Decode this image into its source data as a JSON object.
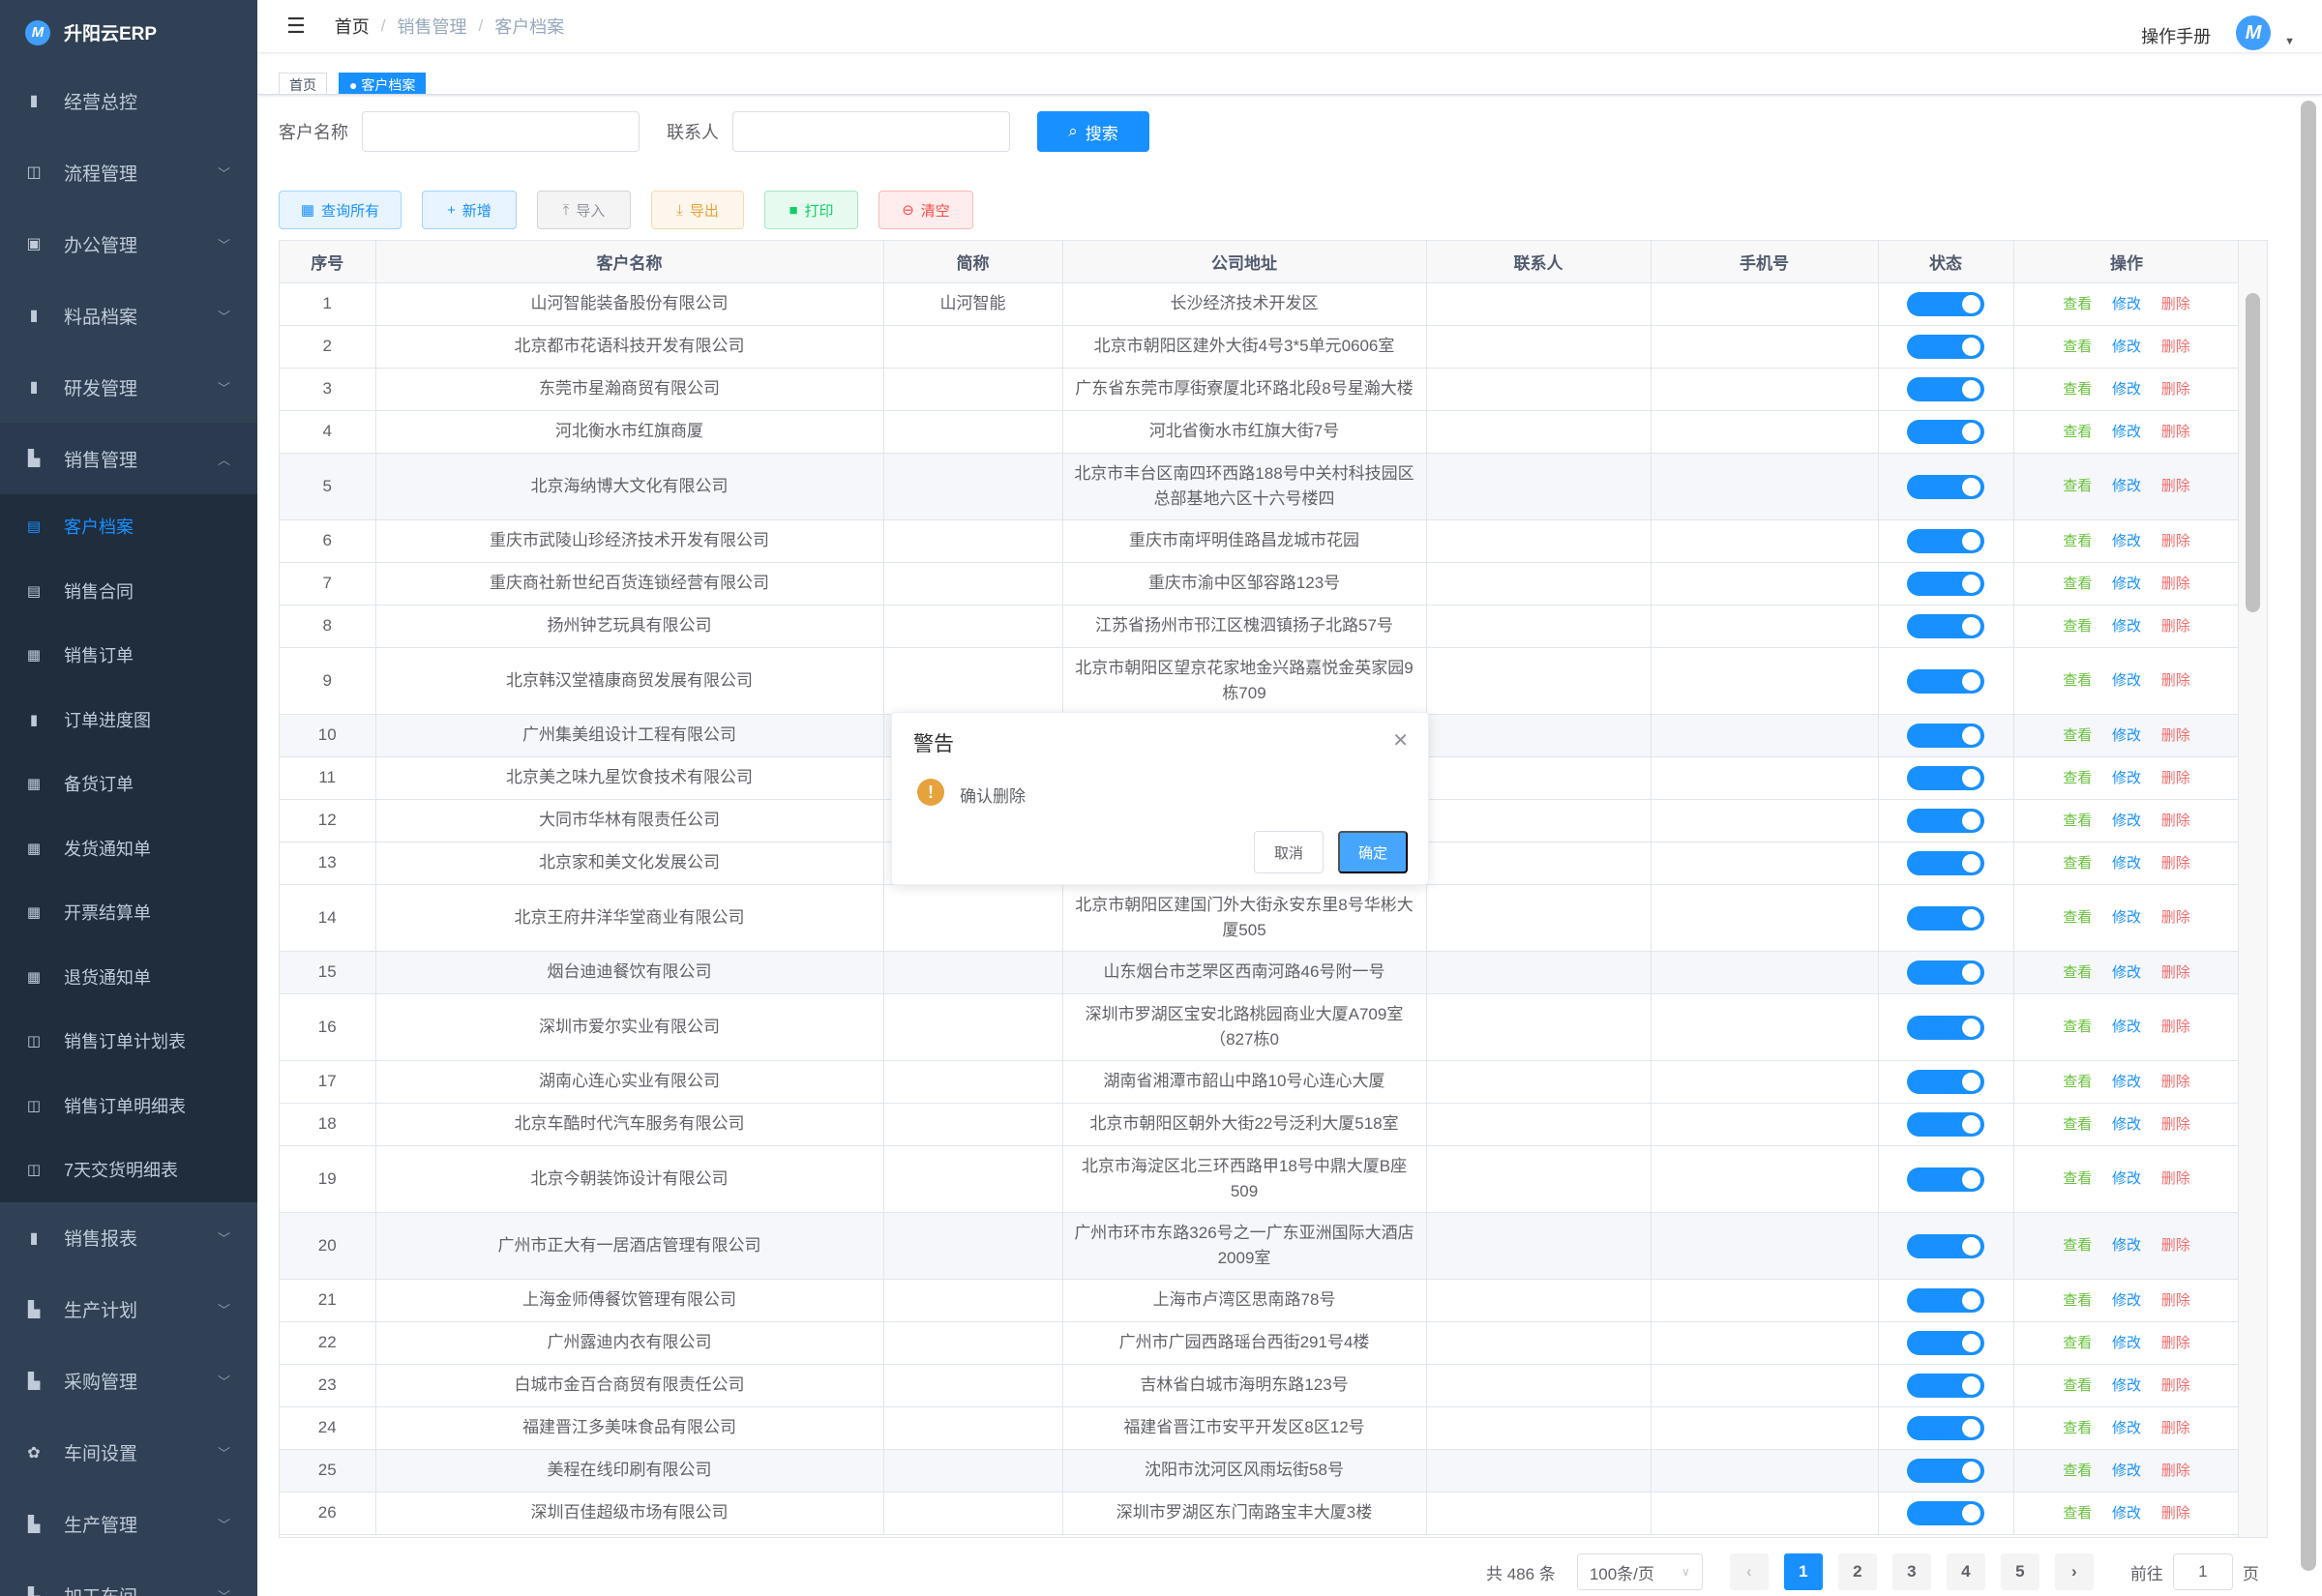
{
  "app": {
    "title": "升阳云ERP",
    "logo_letter": "M"
  },
  "sidebar": {
    "top": [
      {
        "label": "经营总控",
        "icon": "bar-chart-icon",
        "expandable": false
      },
      {
        "label": "流程管理",
        "icon": "flow-icon",
        "expandable": true
      },
      {
        "label": "办公管理",
        "icon": "office-icon",
        "expandable": true
      },
      {
        "label": "料品档案",
        "icon": "book-icon",
        "expandable": true
      },
      {
        "label": "研发管理",
        "icon": "research-icon",
        "expandable": true
      },
      {
        "label": "销售管理",
        "icon": "documents-icon",
        "expandable": true,
        "open": true
      }
    ],
    "sub": [
      {
        "label": "客户档案",
        "icon": "edit-doc-icon",
        "active": true
      },
      {
        "label": "销售合同",
        "icon": "edit-doc-icon"
      },
      {
        "label": "销售订单",
        "icon": "table-icon"
      },
      {
        "label": "订单进度图",
        "icon": "bar-chart-icon"
      },
      {
        "label": "备货订单",
        "icon": "table-icon"
      },
      {
        "label": "发货通知单",
        "icon": "table-icon"
      },
      {
        "label": "开票结算单",
        "icon": "table-icon"
      },
      {
        "label": "退货通知单",
        "icon": "table-icon"
      },
      {
        "label": "销售订单计划表",
        "icon": "open-book-icon"
      },
      {
        "label": "销售订单明细表",
        "icon": "open-book-icon"
      },
      {
        "label": "7天交货明细表",
        "icon": "open-book-icon"
      }
    ],
    "bottom": [
      {
        "label": "销售报表",
        "icon": "bar-chart-icon"
      },
      {
        "label": "生产计划",
        "icon": "documents-icon"
      },
      {
        "label": "采购管理",
        "icon": "documents-icon"
      },
      {
        "label": "车间设置",
        "icon": "gear-icon"
      },
      {
        "label": "生产管理",
        "icon": "documents-icon"
      },
      {
        "label": "加工车间",
        "icon": "documents-icon"
      }
    ]
  },
  "navbar": {
    "breadcrumb": [
      "首页",
      "销售管理",
      "客户档案"
    ],
    "manual": "操作手册"
  },
  "tags": [
    {
      "label": "首页",
      "active": false
    },
    {
      "label": "● 客户档案",
      "active": true
    }
  ],
  "search": {
    "name_label": "客户名称",
    "name_value": "",
    "contact_label": "联系人",
    "contact_value": "",
    "button": "搜索"
  },
  "toolbar": [
    {
      "label": "查询所有",
      "icon": "grid-icon",
      "glyph": "▦",
      "color": "#1890ff",
      "bg": "#e8f4ff",
      "border": "#a3d3ff"
    },
    {
      "label": "新增",
      "icon": "plus-icon",
      "glyph": "+",
      "color": "#1890ff",
      "bg": "#e8f4ff",
      "border": "#a3d3ff"
    },
    {
      "label": "导入",
      "icon": "upload-icon",
      "glyph": "⤒",
      "color": "#909399",
      "bg": "#f4f4f5",
      "border": "#d3d4d6"
    },
    {
      "label": "导出",
      "icon": "download-icon",
      "glyph": "⤓",
      "color": "#e6a23c",
      "bg": "#fdf6ec",
      "border": "#f5dab1"
    },
    {
      "label": "打印",
      "icon": "print-icon",
      "glyph": "■",
      "color": "#13ce66",
      "bg": "#e7faf0",
      "border": "#a1ebc2"
    },
    {
      "label": "清空",
      "icon": "clear-icon",
      "glyph": "⊖",
      "color": "#ff4949",
      "bg": "#ffeded",
      "border": "#ffb6b6"
    }
  ],
  "table": {
    "columns": [
      "序号",
      "客户名称",
      "简称",
      "公司地址",
      "联系人",
      "手机号",
      "状态",
      "操作"
    ],
    "actions": {
      "view": "查看",
      "edit": "修改",
      "delete": "删除"
    },
    "rows": [
      {
        "no": "1",
        "name": "山河智能装备股份有限公司",
        "short": "山河智能",
        "address": "长沙经济技术开发区",
        "contact": "",
        "phone": "",
        "status": true
      },
      {
        "no": "2",
        "name": "北京都市花语科技开发有限公司",
        "short": "",
        "address": "北京市朝阳区建外大街4号3*5单元0606室",
        "contact": "",
        "phone": "",
        "status": true
      },
      {
        "no": "3",
        "name": "东莞市星瀚商贸有限公司",
        "short": "",
        "address": "广东省东莞市厚街寮厦北环路北段8号星瀚大楼",
        "contact": "",
        "phone": "",
        "status": true
      },
      {
        "no": "4",
        "name": "河北衡水市红旗商厦",
        "short": "",
        "address": "河北省衡水市红旗大街7号",
        "contact": "",
        "phone": "",
        "status": true
      },
      {
        "no": "5",
        "name": "北京海纳博大文化有限公司",
        "short": "",
        "address": "北京市丰台区南四环西路188号中关村科技园区总部基地六区十六号楼四",
        "contact": "",
        "phone": "",
        "status": true,
        "highlighted": true
      },
      {
        "no": "6",
        "name": "重庆市武陵山珍经济技术开发有限公司",
        "short": "",
        "address": "重庆市南坪明佳路昌龙城市花园",
        "contact": "",
        "phone": "",
        "status": true
      },
      {
        "no": "7",
        "name": "重庆商社新世纪百货连锁经营有限公司",
        "short": "",
        "address": "重庆市渝中区邹容路123号",
        "contact": "",
        "phone": "",
        "status": true
      },
      {
        "no": "8",
        "name": "扬州钟艺玩具有限公司",
        "short": "",
        "address": "江苏省扬州市邗江区槐泗镇扬子北路57号",
        "contact": "",
        "phone": "",
        "status": true
      },
      {
        "no": "9",
        "name": "北京韩汉堂禧康商贸发展有限公司",
        "short": "",
        "address": "北京市朝阳区望京花家地金兴路嘉悦金英家园9栋709",
        "contact": "",
        "phone": "",
        "status": true
      },
      {
        "no": "10",
        "name": "广州集美组设计工程有限公司",
        "short": "",
        "address": "",
        "contact": "",
        "phone": "",
        "status": true,
        "highlighted": true
      },
      {
        "no": "11",
        "name": "北京美之味九星饮食技术有限公司",
        "short": "",
        "address": "",
        "contact": "",
        "phone": "",
        "status": true
      },
      {
        "no": "12",
        "name": "大同市华林有限责任公司",
        "short": "",
        "address": "",
        "contact": "",
        "phone": "",
        "status": true
      },
      {
        "no": "13",
        "name": "北京家和美文化发展公司",
        "short": "",
        "address": "",
        "contact": "",
        "phone": "",
        "status": true
      },
      {
        "no": "14",
        "name": "北京王府井洋华堂商业有限公司",
        "short": "",
        "address": "北京市朝阳区建国门外大街永安东里8号华彬大厦505",
        "contact": "",
        "phone": "",
        "status": true
      },
      {
        "no": "15",
        "name": "烟台迪迪餐饮有限公司",
        "short": "",
        "address": "山东烟台市芝罘区西南河路46号附一号",
        "contact": "",
        "phone": "",
        "status": true,
        "highlighted": true
      },
      {
        "no": "16",
        "name": "深圳市爱尔实业有限公司",
        "short": "",
        "address": "深圳市罗湖区宝安北路桃园商业大厦A709室（827栋0",
        "contact": "",
        "phone": "",
        "status": true
      },
      {
        "no": "17",
        "name": "湖南心连心实业有限公司",
        "short": "",
        "address": "湖南省湘潭市韶山中路10号心连心大厦",
        "contact": "",
        "phone": "",
        "status": true
      },
      {
        "no": "18",
        "name": "北京车酷时代汽车服务有限公司",
        "short": "",
        "address": "北京市朝阳区朝外大街22号泛利大厦518室",
        "contact": "",
        "phone": "",
        "status": true
      },
      {
        "no": "19",
        "name": "北京今朝装饰设计有限公司",
        "short": "",
        "address": "北京市海淀区北三环西路甲18号中鼎大厦B座509",
        "contact": "",
        "phone": "",
        "status": true
      },
      {
        "no": "20",
        "name": "广州市正大有一居酒店管理有限公司",
        "short": "",
        "address": "广州市环市东路326号之一广东亚洲国际大酒店2009室",
        "contact": "",
        "phone": "",
        "status": true,
        "highlighted": true
      },
      {
        "no": "21",
        "name": "上海金师傅餐饮管理有限公司",
        "short": "",
        "address": "上海市卢湾区思南路78号",
        "contact": "",
        "phone": "",
        "status": true
      },
      {
        "no": "22",
        "name": "广州露迪内衣有限公司",
        "short": "",
        "address": "广州市广园西路瑶台西街291号4楼",
        "contact": "",
        "phone": "",
        "status": true
      },
      {
        "no": "23",
        "name": "白城市金百合商贸有限责任公司",
        "short": "",
        "address": "吉林省白城市海明东路123号",
        "contact": "",
        "phone": "",
        "status": true
      },
      {
        "no": "24",
        "name": "福建晋江多美味食品有限公司",
        "short": "",
        "address": "福建省晋江市安平开发区8区12号",
        "contact": "",
        "phone": "",
        "status": true
      },
      {
        "no": "25",
        "name": "美程在线印刷有限公司",
        "short": "",
        "address": "沈阳市沈河区风雨坛街58号",
        "contact": "",
        "phone": "",
        "status": true,
        "highlighted": true
      },
      {
        "no": "26",
        "name": "深圳百佳超级市场有限公司",
        "short": "",
        "address": "深圳市罗湖区东门南路宝丰大厦3楼",
        "contact": "",
        "phone": "",
        "status": true
      }
    ]
  },
  "pagination": {
    "total": "共 486 条",
    "page_size": "100条/页",
    "pages": [
      "1",
      "2",
      "3",
      "4",
      "5"
    ],
    "current": "1",
    "goto_label": "前往",
    "goto_value": "1",
    "page_suffix": "页"
  },
  "dialog": {
    "title": "警告",
    "message": "确认删除",
    "cancel": "取消",
    "confirm": "确定"
  },
  "colors": {
    "primary": "#1890ff",
    "sidebar": "#304156",
    "submenu": "#1f2d3d",
    "warning": "#e6a23c",
    "danger": "#f56c6c",
    "success": "#67c23a"
  }
}
